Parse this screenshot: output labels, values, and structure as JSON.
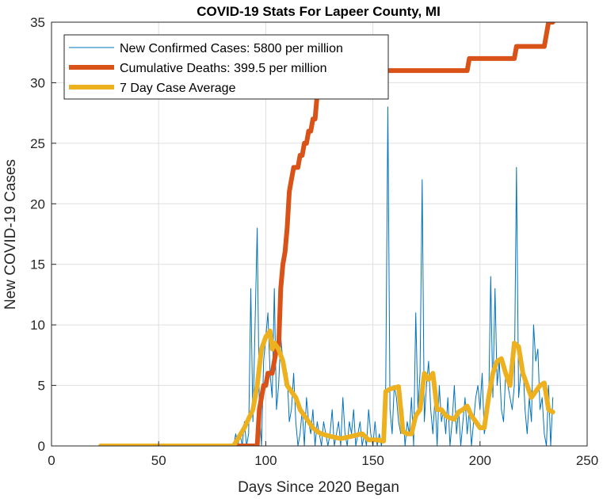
{
  "chart_data": {
    "type": "line",
    "title": "COVID-19 Stats For Lapeer County, MI",
    "xlabel": "Days Since 2020 Began",
    "ylabel": "New COVID-19 Cases",
    "xlim": [
      0,
      250
    ],
    "ylim": [
      0,
      35
    ],
    "xticks": [
      0,
      50,
      100,
      150,
      200,
      250
    ],
    "yticks": [
      0,
      5,
      10,
      15,
      20,
      25,
      30,
      35
    ],
    "grid": true,
    "legend": "top-left",
    "series": [
      {
        "name": "New Confirmed Cases: 5800 per million",
        "color": "#0072BD",
        "width": 1,
        "x": [
          83,
          84,
          85,
          86,
          87,
          88,
          89,
          90,
          91,
          92,
          93,
          94,
          95,
          96,
          97,
          98,
          99,
          100,
          101,
          102,
          103,
          104,
          105,
          106,
          107,
          108,
          109,
          110,
          111,
          112,
          113,
          114,
          115,
          116,
          117,
          118,
          119,
          120,
          121,
          122,
          123,
          124,
          125,
          126,
          127,
          128,
          129,
          130,
          131,
          132,
          133,
          134,
          135,
          136,
          137,
          138,
          139,
          140,
          141,
          142,
          143,
          144,
          145,
          146,
          147,
          148,
          149,
          150,
          151,
          152,
          153,
          154,
          155,
          156,
          157,
          158,
          159,
          160,
          161,
          162,
          163,
          164,
          165,
          166,
          167,
          168,
          169,
          170,
          171,
          172,
          173,
          174,
          175,
          176,
          177,
          178,
          179,
          180,
          181,
          182,
          183,
          184,
          185,
          186,
          187,
          188,
          189,
          190,
          191,
          192,
          193,
          194,
          195,
          196,
          197,
          198,
          199,
          200,
          201,
          202,
          203,
          204,
          205,
          206,
          207,
          208,
          209,
          210,
          211,
          212,
          213,
          214,
          215,
          216,
          217,
          218,
          219,
          220,
          221,
          222,
          223,
          224,
          225,
          226,
          227,
          228,
          229,
          230,
          231,
          232,
          233,
          234
        ],
        "values": [
          0,
          0,
          0,
          1,
          0,
          1,
          0,
          2,
          0,
          1,
          13,
          2,
          10,
          18,
          3,
          0,
          7,
          9,
          11,
          6,
          4,
          13,
          3,
          5,
          9,
          7,
          5,
          6,
          2,
          3,
          6,
          2,
          0,
          1,
          3,
          0,
          4,
          2,
          1,
          3,
          0,
          2,
          1,
          0,
          2,
          1,
          0,
          1,
          3,
          0,
          1,
          2,
          0,
          4,
          1,
          0,
          2,
          1,
          3,
          0,
          1,
          2,
          0,
          1,
          0,
          3,
          1,
          0,
          2,
          0,
          1,
          0,
          2,
          5,
          28,
          3,
          1,
          5,
          4,
          2,
          1,
          3,
          0,
          2,
          1,
          4,
          0,
          11,
          3,
          6,
          22,
          2,
          5,
          7,
          3,
          1,
          4,
          0,
          5,
          2,
          3,
          1,
          4,
          0,
          2,
          5,
          1,
          3,
          0,
          2,
          4,
          1,
          3,
          0,
          2,
          4,
          5,
          3,
          6,
          1,
          2,
          3,
          14,
          4,
          13,
          5,
          7,
          3,
          2,
          6,
          5,
          4,
          3,
          5,
          23,
          4,
          6,
          7,
          3,
          1,
          4,
          2,
          10,
          7,
          8,
          3,
          4,
          1,
          0,
          5,
          0,
          4
        ]
      },
      {
        "name": "Cumulative Deaths: 399.5 per million",
        "color": "#D95319",
        "width": 6,
        "x": [
          23,
          96,
          97,
          98,
          99,
          100,
          101,
          102,
          103,
          104,
          105,
          106,
          107,
          108,
          109,
          110,
          111,
          112,
          113,
          114,
          115,
          116,
          117,
          118,
          119,
          120,
          121,
          122,
          123,
          124,
          125,
          126,
          127,
          128,
          190,
          191,
          194,
          195,
          215,
          216,
          217,
          218,
          230,
          231,
          232,
          234
        ],
        "values": [
          0,
          0,
          3,
          4,
          5,
          5,
          6,
          6,
          6,
          7,
          8,
          8,
          13,
          15,
          16,
          18,
          21,
          22,
          23,
          23,
          23,
          24,
          24,
          25,
          25,
          26,
          26,
          27,
          27,
          29,
          29,
          30,
          31,
          31,
          31,
          31,
          31,
          32,
          32,
          32,
          33,
          33,
          33,
          34,
          35,
          35
        ]
      },
      {
        "name": "7 Day Case Average",
        "color": "#EDB120",
        "width": 6,
        "x": [
          23,
          85,
          90,
          94,
          96,
          98,
          100,
          102,
          103,
          104,
          106,
          108,
          110,
          112,
          114,
          116,
          118,
          120,
          122,
          124,
          126,
          130,
          135,
          140,
          145,
          148,
          152,
          155,
          156,
          158,
          160,
          162,
          164,
          166,
          168,
          170,
          172,
          174,
          176,
          178,
          180,
          182,
          184,
          186,
          188,
          190,
          192,
          194,
          196,
          198,
          200,
          202,
          204,
          206,
          208,
          210,
          212,
          214,
          216,
          218,
          220,
          222,
          224,
          226,
          228,
          230,
          232,
          234
        ],
        "values": [
          0,
          0,
          1.5,
          3,
          5,
          8,
          9,
          9.5,
          8,
          8.5,
          8,
          7,
          5,
          4.5,
          4,
          3,
          2.5,
          2,
          1.5,
          1.2,
          1,
          0.8,
          0.6,
          0.8,
          1,
          0.5,
          0.5,
          0.4,
          4.5,
          4.7,
          4.8,
          4.9,
          1.2,
          1,
          1,
          2.5,
          3,
          6,
          5.5,
          6,
          3,
          3,
          2.5,
          2.3,
          2.2,
          2.8,
          3,
          3.3,
          2.5,
          2,
          1.5,
          1.5,
          4,
          6,
          7,
          7.2,
          6,
          5,
          8.5,
          8.2,
          6,
          5,
          4,
          4.5,
          5,
          5.2,
          3,
          2.8
        ]
      }
    ]
  }
}
